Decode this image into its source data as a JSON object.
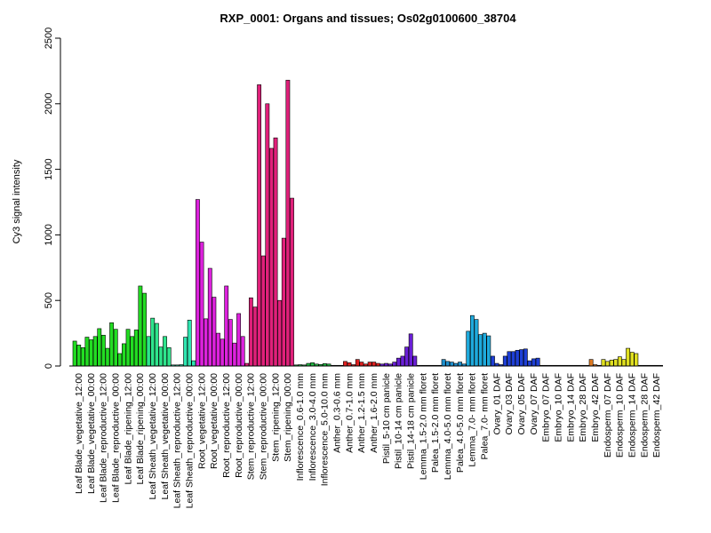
{
  "chart_data": {
    "type": "bar",
    "title": "RXP_0001: Organs and tissues; Os02g0100600_38704",
    "xlabel": "",
    "ylabel": "Cy3 signal intensity",
    "ylim": [
      0,
      2500
    ],
    "yticks": [
      0,
      500,
      1000,
      1500,
      2000,
      2500
    ],
    "groups": [
      {
        "label": "Leaf Blade_vegetative_12:00",
        "color": "#22dd22",
        "values": [
          190,
          160,
          140
        ]
      },
      {
        "label": "Leaf Blade_vegetative_00:00",
        "color": "#22dd22",
        "values": [
          220,
          200,
          225
        ]
      },
      {
        "label": "Leaf Blade_reproductive_12:00",
        "color": "#22dd22",
        "values": [
          285,
          235,
          135
        ]
      },
      {
        "label": "Leaf Blade_reproductive_00:00",
        "color": "#22dd22",
        "values": [
          330,
          280,
          95
        ]
      },
      {
        "label": "Leaf Blade_ripening_12:00",
        "color": "#22dd22",
        "values": [
          170,
          280,
          225
        ]
      },
      {
        "label": "Leaf Blade_ripening_00:00",
        "color": "#22dd22",
        "values": [
          275,
          610,
          555
        ]
      },
      {
        "label": "Leaf Sheath_vegetative_12:00",
        "color": "#2ee58c",
        "values": [
          225,
          365,
          325
        ]
      },
      {
        "label": "Leaf Sheath_vegetative_00:00",
        "color": "#2ee58c",
        "values": [
          145,
          225,
          140
        ]
      },
      {
        "label": "Leaf Sheath_reproductive_12:00",
        "color": "#2ee5b0",
        "values": [
          8,
          8,
          10
        ]
      },
      {
        "label": "Leaf Sheath_reproductive_00:00",
        "color": "#2ee5b0",
        "values": [
          220,
          350,
          40
        ]
      },
      {
        "label": "Root_vegetative_12:00",
        "color": "#dd22dd",
        "values": [
          1270,
          945,
          360
        ]
      },
      {
        "label": "Root_vegetative_00:00",
        "color": "#dd22dd",
        "values": [
          745,
          525,
          250
        ]
      },
      {
        "label": "Root_reproductive_12:00",
        "color": "#dd22dd",
        "values": [
          205,
          610,
          355
        ]
      },
      {
        "label": "Root_reproductive_00:00",
        "color": "#dd22dd",
        "values": [
          175,
          400,
          225
        ]
      },
      {
        "label": "Stem_reproductive_12:00",
        "color": "#e0207a",
        "values": [
          20,
          520,
          450
        ]
      },
      {
        "label": "Stem_reproductive_00:00",
        "color": "#e0207a",
        "values": [
          2145,
          840,
          2000
        ]
      },
      {
        "label": "Stem_ripening_12:00",
        "color": "#e0207a",
        "values": [
          1660,
          1740,
          500
        ]
      },
      {
        "label": "Stem_ripening_00:00",
        "color": "#e0207a",
        "values": [
          975,
          2180,
          1280
        ]
      },
      {
        "label": "Inflorescence_0.6-1.0 mm",
        "color": "#22bb44",
        "values": [
          8,
          10,
          8
        ]
      },
      {
        "label": "Inflorescence_3.0-4.0 mm",
        "color": "#22bb44",
        "values": [
          20,
          25,
          15
        ]
      },
      {
        "label": "Inflorescence_5.0-10.0 mm",
        "color": "#22bb44",
        "values": [
          12,
          18,
          15
        ]
      },
      {
        "label": "Anther_0.3-0.6 mm",
        "color": "#e02020",
        "values": [
          5,
          5,
          5
        ]
      },
      {
        "label": "Anther_0.7-1.0 mm",
        "color": "#e02020",
        "values": [
          35,
          25,
          10
        ]
      },
      {
        "label": "Anther_1.2-1.5 mm",
        "color": "#e02020",
        "values": [
          50,
          30,
          15
        ]
      },
      {
        "label": "Anther_1.6-2.0 mm",
        "color": "#e02020",
        "values": [
          30,
          30,
          20
        ]
      },
      {
        "label": "Pistil_5-10 cm panicle",
        "color": "#6a1fd6",
        "values": [
          15,
          20,
          15
        ]
      },
      {
        "label": "Pistil_10-14 cm panicle",
        "color": "#6a1fd6",
        "values": [
          30,
          60,
          75
        ]
      },
      {
        "label": "Pistil_14-18 cm panicle",
        "color": "#6a1fd6",
        "values": [
          145,
          245,
          75
        ]
      },
      {
        "label": "Lemma_1.5-2.0 mm floret",
        "color": "#1e90cf",
        "values": [
          5,
          5,
          5
        ]
      },
      {
        "label": "Palea_1.5-2.0 mm floret",
        "color": "#1e90cf",
        "values": [
          5,
          5,
          5
        ]
      },
      {
        "label": "Lemma_4.0-5.0 mm floret",
        "color": "#1e90cf",
        "values": [
          50,
          35,
          30
        ]
      },
      {
        "label": "Palea_4.0-5.0 mm floret",
        "color": "#1e90cf",
        "values": [
          20,
          30,
          15
        ]
      },
      {
        "label": "Lemma_7.0- mm floret",
        "color": "#1eaadd",
        "values": [
          265,
          385,
          355
        ]
      },
      {
        "label": "Palea_7.0- mm floret",
        "color": "#1eaadd",
        "values": [
          240,
          250,
          230
        ]
      },
      {
        "label": "Ovary_01 DAF",
        "color": "#1e3fd6",
        "values": [
          75,
          20,
          10
        ]
      },
      {
        "label": "Ovary_03 DAF",
        "color": "#1e3fd6",
        "values": [
          75,
          110,
          110
        ]
      },
      {
        "label": "Ovary_05 DAF",
        "color": "#1e3fd6",
        "values": [
          120,
          125,
          130
        ]
      },
      {
        "label": "Ovary_07 DAF",
        "color": "#1e3fd6",
        "values": [
          40,
          55,
          60
        ]
      },
      {
        "label": "Embryo_07 DAF",
        "color": "#e07a20",
        "values": [
          5,
          5,
          5
        ]
      },
      {
        "label": "Embryo_10 DAF",
        "color": "#e07a20",
        "values": [
          5,
          5,
          5
        ]
      },
      {
        "label": "Embryo_14 DAF",
        "color": "#e07a20",
        "values": [
          5,
          5,
          5
        ]
      },
      {
        "label": "Embryo_28 DAF",
        "color": "#e07a20",
        "values": [
          5,
          5,
          5
        ]
      },
      {
        "label": "Embryo_42 DAF",
        "color": "#e07a20",
        "values": [
          50,
          10,
          5
        ]
      },
      {
        "label": "Endosperm_07 DAF",
        "color": "#e0e020",
        "values": [
          50,
          35,
          45
        ]
      },
      {
        "label": "Endosperm_10 DAF",
        "color": "#e0e020",
        "values": [
          50,
          70,
          50
        ]
      },
      {
        "label": "Endosperm_14 DAF",
        "color": "#e0e020",
        "values": [
          135,
          105,
          95
        ]
      },
      {
        "label": "Endosperm_28 DAF",
        "color": "#e0e020",
        "values": [
          5,
          5,
          5
        ]
      },
      {
        "label": "Endosperm_42 DAF",
        "color": "#e0e020",
        "values": [
          5,
          5,
          5
        ]
      }
    ],
    "tick_labels": [
      "Leaf Blade_vegetative_12:00",
      "Leaf Blade_vegetative_00:00",
      "Leaf Blade_reproductive_12:00",
      "Leaf Blade_reproductive_00:00",
      "Leaf Blade_ripening_12:00",
      "Leaf Blade_ripening_00:00",
      "Leaf Sheath_vegetative_12:00",
      "Leaf Sheath_vegetative_00:00",
      "Leaf Sheath_reproductive_12:00",
      "Leaf Sheath_reproductive_00:00",
      "Root_vegetative_12:00",
      "Root_vegetative_00:00",
      "Root_reproductive_12:00",
      "Root_reproductive_00:00",
      "Stem_reproductive_12:00",
      "Stem_reproductive_00:00",
      "Stem_ripening_12:00",
      "Stem_ripening_00:00",
      "Inflorescence_0.6-1.0 mm",
      "Inflorescence_3.0-4.0 mm",
      "Inflorescence_5.0-10.0 mm",
      "Anther_0.3-0.6 mm",
      "Anther_0.7-1.0 mm",
      "Anther_1.2-1.5 mm",
      "Anther_1.6-2.0 mm",
      "Pistil_5-10 cm panicle",
      "Pistil_10-14 cm panicle",
      "Pistil_14-18 cm panicle",
      "Lemma_1.5-2.0 mm floret",
      "Palea_1.5-2.0 mm floret",
      "Lemma_4.0-5.0 mm floret",
      "Palea_4.0-5.0 mm floret",
      "Lemma_7.0- mm floret",
      "Palea_7.0- mm floret",
      "Ovary_01 DAF",
      "Ovary_03 DAF",
      "Ovary_05 DAF",
      "Ovary_07 DAF",
      "Embryo_07 DAF",
      "Embryo_10 DAF",
      "Embryo_14 DAF",
      "Embryo_28 DAF",
      "Embryo_42 DAF",
      "Endosperm_07 DAF",
      "Endosperm_10 DAF",
      "Endosperm_14 DAF",
      "Endosperm_28 DAF",
      "Endosperm_42 DAF"
    ]
  }
}
